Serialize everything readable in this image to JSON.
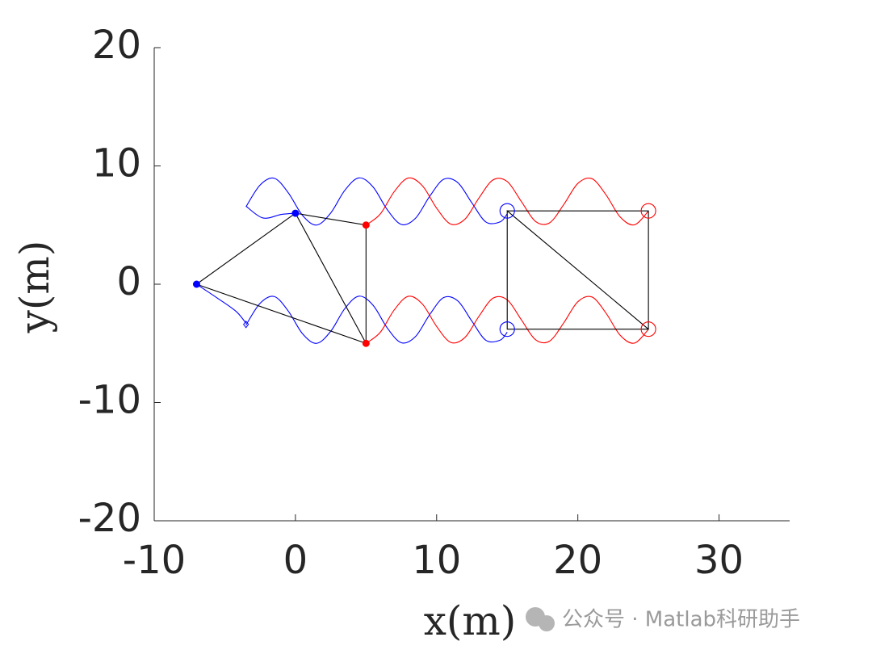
{
  "chart_data": {
    "type": "line",
    "xlabel": "x(m)",
    "ylabel": "y(m)",
    "watermark": "公众号 · Matlab科研助手",
    "xlim": [
      -10,
      35
    ],
    "ylim": [
      -20,
      20
    ],
    "xticks": [
      -10,
      0,
      10,
      20,
      30
    ],
    "yticks": [
      -20,
      -10,
      0,
      10,
      20
    ],
    "grid": false,
    "series": [
      {
        "color": "#0000ff",
        "x": [
          -3.5,
          -2.5,
          -1.5,
          -0.5,
          0.5,
          1.5,
          2.5,
          3.5,
          4.5,
          5.5,
          6.5,
          7.5,
          8.5,
          9.5,
          10.5,
          11.5,
          12.5,
          13.5,
          14.5,
          15
        ],
        "values": [
          6.55,
          8.39,
          8.96,
          7.72,
          5.82,
          5.0,
          6.02,
          7.94,
          8.99,
          8.22,
          6.31,
          5.05,
          5.57,
          7.41,
          8.87,
          8.59,
          6.87,
          5.25,
          5.27,
          5.95
        ]
      },
      {
        "color": "#0000ff",
        "x": [
          -3.5,
          -2.3,
          -1,
          0
        ],
        "values": [
          6.6,
          5.6,
          5.9,
          6
        ]
      },
      {
        "color": "#0000ff",
        "x": [
          -3.5,
          -2.5,
          -1.5,
          -0.5,
          0.5,
          1.5,
          2.5,
          3.5,
          4.5,
          5.5,
          6.5,
          7.5,
          8.5,
          9.5,
          10.5,
          11.5,
          12.5,
          13.5,
          14.5,
          15
        ],
        "values": [
          -3.45,
          -1.61,
          -1.04,
          -2.28,
          -4.18,
          -5.0,
          -3.98,
          -2.06,
          -1.01,
          -1.78,
          -3.69,
          -4.95,
          -4.43,
          -2.59,
          -1.13,
          -1.41,
          -3.13,
          -4.75,
          -4.73,
          -4.05
        ]
      },
      {
        "color": "#0000ff",
        "x": [
          -7,
          -5.5,
          -4.2,
          -3.5
        ],
        "values": [
          0,
          -1.2,
          -2.3,
          -3.3
        ]
      },
      {
        "color": "#ff0000",
        "x": [
          5,
          6,
          7,
          8,
          9,
          10,
          11,
          12,
          13,
          14,
          15,
          16,
          17,
          18,
          19,
          20,
          21,
          22,
          23,
          24,
          25
        ],
        "values": [
          5.0,
          5.92,
          7.83,
          8.98,
          8.31,
          6.43,
          5.08,
          5.49,
          7.29,
          8.82,
          8.68,
          6.99,
          5.31,
          5.19,
          6.73,
          8.52,
          8.92,
          7.55,
          5.68,
          5.02,
          6.18
        ]
      },
      {
        "color": "#ff0000",
        "x": [
          5,
          6,
          7,
          8,
          9,
          10,
          11,
          12,
          13,
          14,
          15,
          16,
          17,
          18,
          19,
          20,
          21,
          22,
          23,
          24,
          25
        ],
        "values": [
          -5.0,
          -4.08,
          -2.17,
          -1.02,
          -1.69,
          -3.57,
          -4.92,
          -4.51,
          -2.71,
          -1.18,
          -1.32,
          -3.01,
          -4.69,
          -4.81,
          -3.27,
          -1.48,
          -1.08,
          -2.45,
          -4.32,
          -4.98,
          -3.82
        ]
      },
      {
        "color": "#000000",
        "x": [
          -7,
          0,
          5,
          5,
          -7,
          null,
          0,
          5
        ],
        "values": [
          0,
          6,
          5,
          -5,
          0,
          null,
          6,
          -5
        ]
      },
      {
        "color": "#000000",
        "x": [
          15,
          25,
          25,
          15,
          15,
          25
        ],
        "values": [
          6.2,
          6.2,
          -3.8,
          -3.8,
          6.2,
          -3.8
        ]
      },
      {
        "color": "#0000ff",
        "line": false,
        "marker": "dot",
        "x": [
          -7,
          0
        ],
        "values": [
          0,
          6
        ]
      },
      {
        "color": "#ff0000",
        "line": false,
        "marker": "dot",
        "x": [
          5,
          5
        ],
        "values": [
          5,
          -5
        ]
      },
      {
        "color": "#0000ff",
        "line": false,
        "marker": "circle",
        "x": [
          15,
          15
        ],
        "values": [
          6.2,
          -3.8
        ]
      },
      {
        "color": "#ff0000",
        "line": false,
        "marker": "circle",
        "x": [
          25,
          25
        ],
        "values": [
          6.2,
          -3.8
        ]
      },
      {
        "color": "#0000ff",
        "line": false,
        "marker": "diamond",
        "x": [
          -3.5
        ],
        "values": [
          -3.4
        ]
      }
    ]
  }
}
